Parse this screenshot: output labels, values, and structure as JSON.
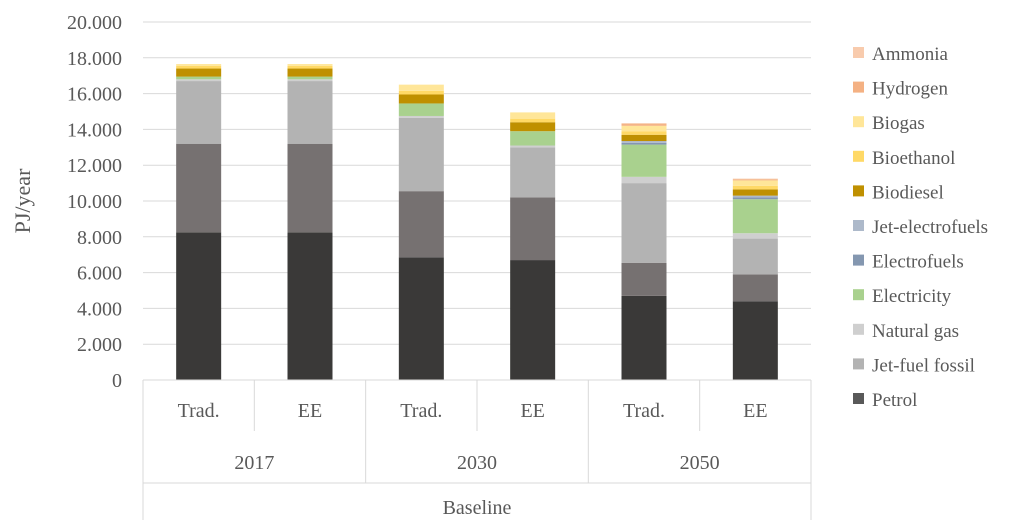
{
  "chart_data": {
    "type": "bar",
    "stacked": true,
    "ylabel": "PJ/year",
    "ylim": [
      0,
      20000
    ],
    "yticks": [
      "0",
      "2.000",
      "4.000",
      "6.000",
      "8.000",
      "10.000",
      "12.000",
      "14.000",
      "16.000",
      "18.000",
      "20.000"
    ],
    "grid": true,
    "legend_position": "right",
    "outer_group": "Baseline",
    "groups": [
      {
        "label": "2017",
        "categories": [
          "Trad.",
          "EE"
        ]
      },
      {
        "label": "2030",
        "categories": [
          "Trad.",
          "EE"
        ]
      },
      {
        "label": "2050",
        "categories": [
          "Trad.",
          "EE"
        ]
      }
    ],
    "categories": [
      "Trad.",
      "EE",
      "Trad.",
      "EE",
      "Trad.",
      "EE"
    ],
    "series": [
      {
        "name": "Petrol",
        "color": "#3a3938",
        "values": [
          8250,
          8250,
          6850,
          6700,
          4700,
          4400
        ]
      },
      {
        "name": "Jet-fuel fossil",
        "color": "#767171",
        "values": [
          4950,
          4950,
          3700,
          3500,
          1850,
          1500
        ]
      },
      {
        "name": "Natural gas",
        "color": "#b3b3b3",
        "values": [
          3500,
          3500,
          4100,
          2800,
          4450,
          2000
        ]
      },
      {
        "name": "Electricity",
        "color": "#cfcfcf",
        "values": [
          100,
          100,
          100,
          100,
          350,
          300
        ]
      },
      {
        "name": "Electrofuels",
        "color": "#a9d18e",
        "values": [
          150,
          150,
          700,
          800,
          1800,
          1900
        ]
      },
      {
        "name": "Jet-electrofuels",
        "color": "#8497b0",
        "values": [
          0,
          0,
          0,
          0,
          100,
          100
        ]
      },
      {
        "name": "Biodiesel",
        "color": "#adb9ca",
        "values": [
          0,
          0,
          0,
          0,
          100,
          100
        ]
      },
      {
        "name": "Bioethanol",
        "color": "#bf9000",
        "values": [
          450,
          450,
          500,
          500,
          350,
          350
        ]
      },
      {
        "name": "Biogas",
        "color": "#ffd966",
        "values": [
          150,
          150,
          200,
          200,
          200,
          200
        ]
      },
      {
        "name": "Hydrogen",
        "color": "#ffe699",
        "values": [
          100,
          100,
          350,
          350,
          300,
          300
        ]
      },
      {
        "name": "Ammonia",
        "color": "#f4b183",
        "values": [
          0,
          0,
          0,
          0,
          100,
          50
        ]
      },
      {
        "name": "",
        "color": "#f8cbad",
        "values": [
          0,
          0,
          0,
          0,
          50,
          50
        ]
      }
    ],
    "legend": [
      "Ammonia",
      "Hydrogen",
      "Biogas",
      "Bioethanol",
      "Biodiesel",
      "Jet-electrofuels",
      "Electrofuels",
      "Electricity",
      "Natural gas",
      "Jet-fuel fossil",
      "Petrol"
    ],
    "legend_colors": [
      "#f8cbad",
      "#f4b183",
      "#ffe699",
      "#ffd966",
      "#bf9000",
      "#adb9ca",
      "#8497b0",
      "#a9d18e",
      "#cfcfcf",
      "#b3b3b3",
      "#595959"
    ]
  }
}
